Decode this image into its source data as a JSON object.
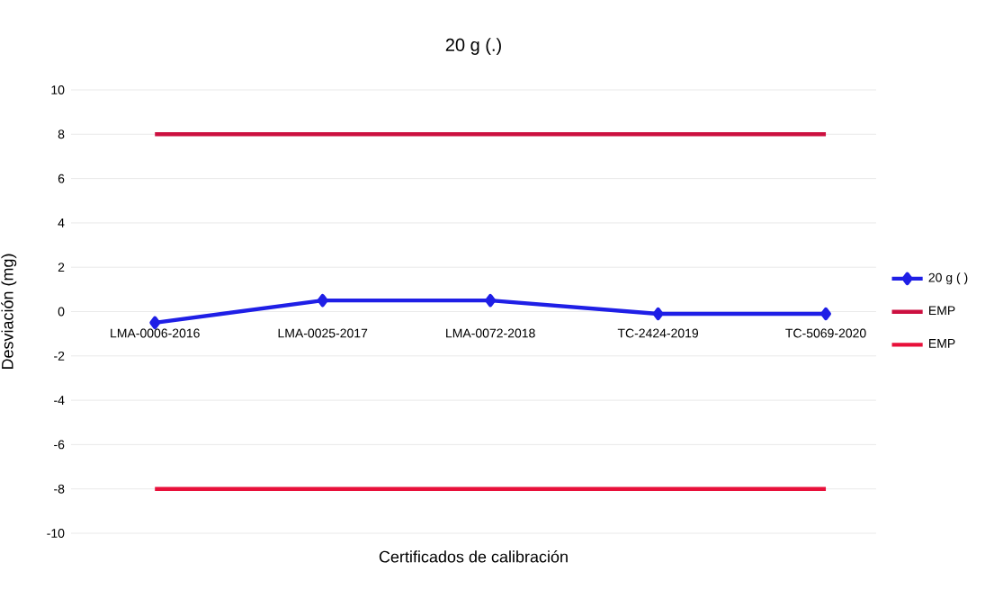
{
  "chart_data": {
    "type": "line",
    "title": "20 g (.)",
    "xlabel": "Certificados de calibración",
    "ylabel": "Desviación (mg)",
    "categories": [
      "LMA-0006-2016",
      "LMA-0025-2017",
      "LMA-0072-2018",
      "TC-2424-2019",
      "TC-5069-2020"
    ],
    "series": [
      {
        "name": "20 g ( )",
        "color": "#1f1fe6",
        "marker": "diamond",
        "values": [
          -0.5,
          0.5,
          0.5,
          -0.1,
          -0.1
        ]
      },
      {
        "name": "EMP",
        "color": "#cc1040",
        "marker": "none",
        "values": [
          8,
          8,
          8,
          8,
          8
        ]
      },
      {
        "name": "EMP",
        "color": "#e8103a",
        "marker": "none",
        "values": [
          -8,
          -8,
          -8,
          -8,
          -8
        ]
      }
    ],
    "ylim": [
      -10,
      10
    ],
    "yticks": [
      -10,
      -8,
      -6,
      -4,
      -2,
      0,
      2,
      4,
      6,
      8,
      10
    ],
    "grid": "y",
    "legend": "right",
    "line_style": "solid"
  }
}
